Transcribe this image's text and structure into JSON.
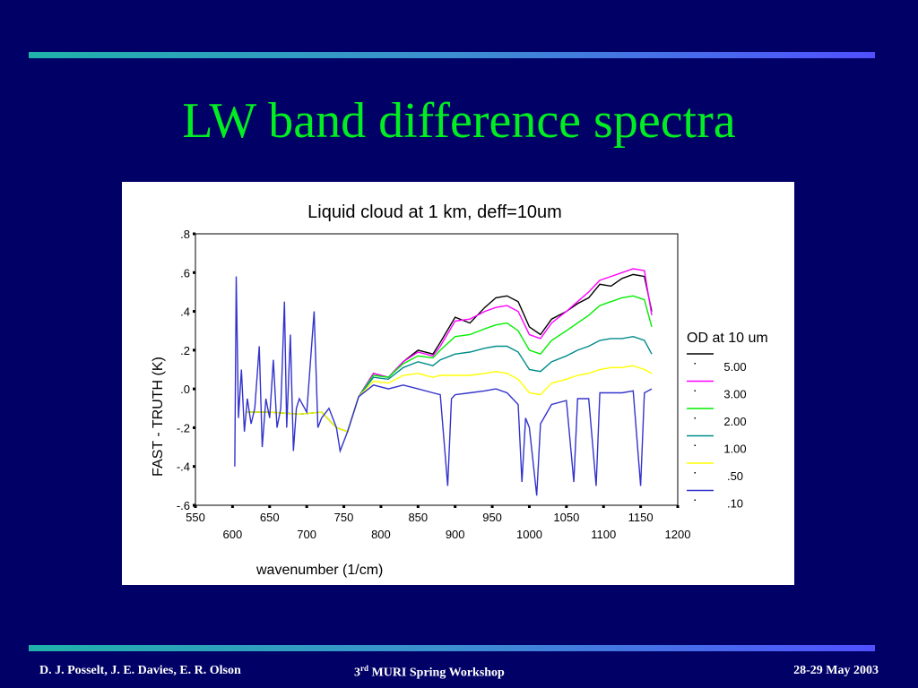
{
  "slide": {
    "title": "LW band difference spectra",
    "footer_left": "D. J. Posselt, J. E. Davies, E. R. Olson",
    "footer_center_num": "3",
    "footer_center_sup": "rd",
    "footer_center_rest": " MURI Spring Workshop",
    "footer_right": "28-29 May 2003"
  },
  "colors": {
    "background": "#000066",
    "title": "#00ee22",
    "rule_start": "#20b2aa",
    "rule_end": "#5050ff"
  },
  "chart_data": {
    "type": "line",
    "title": "Liquid cloud at 1 km, deff=10um",
    "xlabel": "wavenumber (1/cm)",
    "ylabel": "FAST - TRUTH (K)",
    "xlim": [
      550,
      1200
    ],
    "ylim": [
      -0.6,
      0.8
    ],
    "x_ticks_upper": [
      "550",
      "650",
      "750",
      "850",
      "950",
      "1050",
      "1150"
    ],
    "x_ticks_lower": [
      "600",
      "700",
      "800",
      "900",
      "1000",
      "1100",
      "1200"
    ],
    "y_ticks": [
      {
        "v": 0.8,
        "label": ".8"
      },
      {
        "v": 0.6,
        "label": ".6"
      },
      {
        "v": 0.4,
        "label": ".4"
      },
      {
        "v": 0.2,
        "label": ".2"
      },
      {
        "v": 0.0,
        "label": ".0"
      },
      {
        "v": -0.2,
        "label": "-.2"
      },
      {
        "v": -0.4,
        "label": "-.4"
      },
      {
        "v": -0.6,
        "label": "-.6"
      }
    ],
    "legend_title": "OD at 10 um",
    "legend_position": "right",
    "series": [
      {
        "name": "5.00",
        "color": "#000000",
        "points": [
          [
            620,
            -0.12
          ],
          [
            650,
            -0.12
          ],
          [
            690,
            -0.13
          ],
          [
            720,
            -0.12
          ],
          [
            740,
            -0.2
          ],
          [
            755,
            -0.22
          ],
          [
            770,
            -0.04
          ],
          [
            790,
            0.08
          ],
          [
            810,
            0.06
          ],
          [
            830,
            0.14
          ],
          [
            850,
            0.2
          ],
          [
            870,
            0.18
          ],
          [
            880,
            0.24
          ],
          [
            900,
            0.37
          ],
          [
            920,
            0.34
          ],
          [
            940,
            0.42
          ],
          [
            955,
            0.47
          ],
          [
            970,
            0.48
          ],
          [
            985,
            0.45
          ],
          [
            1000,
            0.32
          ],
          [
            1015,
            0.28
          ],
          [
            1030,
            0.36
          ],
          [
            1050,
            0.4
          ],
          [
            1065,
            0.44
          ],
          [
            1080,
            0.47
          ],
          [
            1095,
            0.54
          ],
          [
            1110,
            0.53
          ],
          [
            1125,
            0.57
          ],
          [
            1140,
            0.59
          ],
          [
            1155,
            0.58
          ],
          [
            1165,
            0.4
          ]
        ]
      },
      {
        "name": "3.00",
        "color": "#ff00ff",
        "points": [
          [
            620,
            -0.12
          ],
          [
            650,
            -0.12
          ],
          [
            690,
            -0.13
          ],
          [
            720,
            -0.12
          ],
          [
            740,
            -0.2
          ],
          [
            755,
            -0.22
          ],
          [
            770,
            -0.04
          ],
          [
            790,
            0.08
          ],
          [
            810,
            0.06
          ],
          [
            830,
            0.14
          ],
          [
            850,
            0.19
          ],
          [
            870,
            0.17
          ],
          [
            880,
            0.22
          ],
          [
            900,
            0.35
          ],
          [
            920,
            0.36
          ],
          [
            940,
            0.4
          ],
          [
            955,
            0.42
          ],
          [
            970,
            0.43
          ],
          [
            985,
            0.4
          ],
          [
            1000,
            0.28
          ],
          [
            1015,
            0.26
          ],
          [
            1030,
            0.34
          ],
          [
            1050,
            0.4
          ],
          [
            1065,
            0.45
          ],
          [
            1080,
            0.5
          ],
          [
            1095,
            0.56
          ],
          [
            1110,
            0.58
          ],
          [
            1125,
            0.6
          ],
          [
            1140,
            0.62
          ],
          [
            1155,
            0.61
          ],
          [
            1165,
            0.38
          ]
        ]
      },
      {
        "name": "2.00",
        "color": "#00ee00",
        "points": [
          [
            620,
            -0.12
          ],
          [
            650,
            -0.12
          ],
          [
            690,
            -0.13
          ],
          [
            720,
            -0.12
          ],
          [
            740,
            -0.2
          ],
          [
            755,
            -0.22
          ],
          [
            770,
            -0.04
          ],
          [
            790,
            0.07
          ],
          [
            810,
            0.06
          ],
          [
            830,
            0.13
          ],
          [
            850,
            0.17
          ],
          [
            870,
            0.16
          ],
          [
            880,
            0.2
          ],
          [
            900,
            0.27
          ],
          [
            920,
            0.28
          ],
          [
            940,
            0.31
          ],
          [
            955,
            0.33
          ],
          [
            970,
            0.34
          ],
          [
            985,
            0.3
          ],
          [
            1000,
            0.2
          ],
          [
            1015,
            0.18
          ],
          [
            1030,
            0.25
          ],
          [
            1050,
            0.3
          ],
          [
            1065,
            0.34
          ],
          [
            1080,
            0.38
          ],
          [
            1095,
            0.43
          ],
          [
            1110,
            0.45
          ],
          [
            1125,
            0.47
          ],
          [
            1140,
            0.48
          ],
          [
            1155,
            0.46
          ],
          [
            1165,
            0.32
          ]
        ]
      },
      {
        "name": "1.00",
        "color": "#008b8b",
        "points": [
          [
            620,
            -0.12
          ],
          [
            650,
            -0.12
          ],
          [
            690,
            -0.13
          ],
          [
            720,
            -0.12
          ],
          [
            740,
            -0.2
          ],
          [
            755,
            -0.22
          ],
          [
            770,
            -0.04
          ],
          [
            790,
            0.06
          ],
          [
            810,
            0.05
          ],
          [
            830,
            0.11
          ],
          [
            850,
            0.14
          ],
          [
            870,
            0.12
          ],
          [
            880,
            0.15
          ],
          [
            900,
            0.18
          ],
          [
            920,
            0.19
          ],
          [
            940,
            0.21
          ],
          [
            955,
            0.22
          ],
          [
            970,
            0.22
          ],
          [
            985,
            0.19
          ],
          [
            1000,
            0.1
          ],
          [
            1015,
            0.09
          ],
          [
            1030,
            0.14
          ],
          [
            1050,
            0.17
          ],
          [
            1065,
            0.2
          ],
          [
            1080,
            0.22
          ],
          [
            1095,
            0.25
          ],
          [
            1110,
            0.26
          ],
          [
            1125,
            0.26
          ],
          [
            1140,
            0.27
          ],
          [
            1155,
            0.25
          ],
          [
            1165,
            0.18
          ]
        ]
      },
      {
        "name": ".50",
        "color": "#ffff00",
        "points": [
          [
            620,
            -0.12
          ],
          [
            650,
            -0.12
          ],
          [
            690,
            -0.13
          ],
          [
            720,
            -0.12
          ],
          [
            740,
            -0.2
          ],
          [
            755,
            -0.22
          ],
          [
            770,
            -0.04
          ],
          [
            790,
            0.04
          ],
          [
            810,
            0.03
          ],
          [
            830,
            0.07
          ],
          [
            850,
            0.08
          ],
          [
            870,
            0.06
          ],
          [
            880,
            0.07
          ],
          [
            900,
            0.07
          ],
          [
            920,
            0.07
          ],
          [
            940,
            0.08
          ],
          [
            955,
            0.09
          ],
          [
            970,
            0.08
          ],
          [
            985,
            0.05
          ],
          [
            1000,
            -0.02
          ],
          [
            1015,
            -0.03
          ],
          [
            1030,
            0.03
          ],
          [
            1050,
            0.05
          ],
          [
            1065,
            0.07
          ],
          [
            1080,
            0.08
          ],
          [
            1095,
            0.1
          ],
          [
            1110,
            0.11
          ],
          [
            1125,
            0.11
          ],
          [
            1140,
            0.12
          ],
          [
            1155,
            0.1
          ],
          [
            1165,
            0.08
          ]
        ]
      },
      {
        "name": ".10",
        "color": "#3333cc",
        "points": [
          [
            603,
            -0.4
          ],
          [
            605,
            0.58
          ],
          [
            608,
            -0.15
          ],
          [
            612,
            0.1
          ],
          [
            616,
            -0.22
          ],
          [
            620,
            -0.05
          ],
          [
            625,
            -0.18
          ],
          [
            630,
            -0.1
          ],
          [
            636,
            0.22
          ],
          [
            640,
            -0.3
          ],
          [
            645,
            -0.05
          ],
          [
            650,
            -0.15
          ],
          [
            655,
            0.15
          ],
          [
            660,
            -0.2
          ],
          [
            665,
            -0.1
          ],
          [
            670,
            0.45
          ],
          [
            673,
            -0.2
          ],
          [
            678,
            0.28
          ],
          [
            682,
            -0.32
          ],
          [
            686,
            -0.1
          ],
          [
            690,
            -0.05
          ],
          [
            700,
            -0.12
          ],
          [
            710,
            0.4
          ],
          [
            715,
            -0.2
          ],
          [
            720,
            -0.15
          ],
          [
            730,
            -0.1
          ],
          [
            740,
            -0.2
          ],
          [
            745,
            -0.32
          ],
          [
            755,
            -0.22
          ],
          [
            770,
            -0.04
          ],
          [
            790,
            0.02
          ],
          [
            810,
            0.0
          ],
          [
            830,
            0.02
          ],
          [
            850,
            0.0
          ],
          [
            870,
            -0.02
          ],
          [
            880,
            -0.03
          ],
          [
            890,
            -0.5
          ],
          [
            895,
            -0.05
          ],
          [
            900,
            -0.03
          ],
          [
            920,
            -0.02
          ],
          [
            940,
            -0.01
          ],
          [
            955,
            0.0
          ],
          [
            970,
            -0.02
          ],
          [
            985,
            -0.08
          ],
          [
            990,
            -0.48
          ],
          [
            995,
            -0.15
          ],
          [
            1000,
            -0.2
          ],
          [
            1010,
            -0.55
          ],
          [
            1015,
            -0.18
          ],
          [
            1030,
            -0.08
          ],
          [
            1050,
            -0.06
          ],
          [
            1060,
            -0.48
          ],
          [
            1065,
            -0.05
          ],
          [
            1080,
            -0.05
          ],
          [
            1090,
            -0.5
          ],
          [
            1095,
            -0.02
          ],
          [
            1110,
            -0.02
          ],
          [
            1125,
            -0.02
          ],
          [
            1140,
            -0.01
          ],
          [
            1150,
            -0.5
          ],
          [
            1155,
            -0.02
          ],
          [
            1165,
            0.0
          ]
        ]
      }
    ]
  }
}
